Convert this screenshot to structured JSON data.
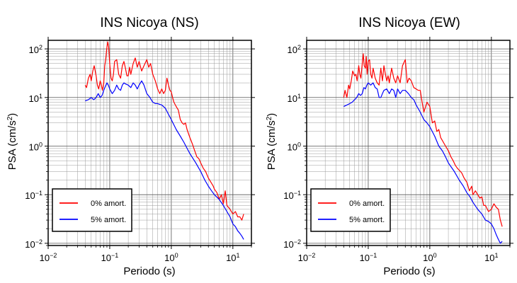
{
  "chart_data": [
    {
      "type": "line",
      "title": "INS Nicoya (NS)",
      "xlabel": "Periodo (s)",
      "ylabel_base": "PSA (cm/s",
      "ylabel_sup": "2",
      "ylabel_end": ")",
      "xscale": "log",
      "yscale": "log",
      "xlim": [
        0.01,
        20
      ],
      "ylim": [
        0.009,
        150
      ],
      "grid": true,
      "legend_position": "bottom-left",
      "x_ticks": [
        {
          "base": "10",
          "exp": "−2"
        },
        {
          "base": "10",
          "exp": "−1"
        },
        {
          "base": "10",
          "exp": "0"
        },
        {
          "base": "10",
          "exp": "1"
        }
      ],
      "y_ticks": [
        {
          "base": "10",
          "exp": "−2"
        },
        {
          "base": "10",
          "exp": "−1"
        },
        {
          "base": "10",
          "exp": "0"
        },
        {
          "base": "10",
          "exp": "1"
        },
        {
          "base": "10",
          "exp": "2"
        }
      ],
      "series": [
        {
          "name": "0% amort.",
          "color": "#ff0000",
          "x": [
            0.04,
            0.042,
            0.045,
            0.048,
            0.05,
            0.053,
            0.056,
            0.06,
            0.063,
            0.066,
            0.07,
            0.073,
            0.076,
            0.08,
            0.083,
            0.086,
            0.09,
            0.093,
            0.096,
            0.1,
            0.105,
            0.11,
            0.115,
            0.12,
            0.13,
            0.14,
            0.15,
            0.16,
            0.17,
            0.18,
            0.19,
            0.2,
            0.21,
            0.22,
            0.24,
            0.26,
            0.28,
            0.3,
            0.33,
            0.36,
            0.4,
            0.43,
            0.46,
            0.5,
            0.55,
            0.6,
            0.65,
            0.7,
            0.75,
            0.8,
            0.85,
            0.9,
            0.95,
            1.0,
            1.05,
            1.1,
            1.2,
            1.3,
            1.4,
            1.5,
            1.6,
            1.7,
            1.8,
            2.0,
            2.2,
            2.4,
            2.6,
            2.8,
            3.0,
            3.3,
            3.6,
            4.0,
            4.4,
            4.8,
            5.0,
            5.5,
            6.0,
            6.5,
            7.0,
            7.5,
            8.0,
            9.0,
            10.0,
            11.0,
            12.0,
            13.0,
            14.0,
            15.0
          ],
          "y": [
            18,
            16,
            25,
            30,
            22,
            35,
            45,
            28,
            18,
            15,
            22,
            18,
            14,
            20,
            45,
            60,
            110,
            140,
            110,
            50,
            25,
            22,
            30,
            55,
            60,
            30,
            25,
            45,
            55,
            40,
            28,
            28,
            42,
            30,
            50,
            65,
            42,
            55,
            35,
            45,
            60,
            42,
            50,
            30,
            22,
            15,
            12,
            15,
            12,
            14,
            25,
            18,
            14,
            13,
            10,
            8,
            6.5,
            5.5,
            3.5,
            3.0,
            2.8,
            3.0,
            2.2,
            1.5,
            1.1,
            0.8,
            0.6,
            0.55,
            0.45,
            0.35,
            0.3,
            0.22,
            0.18,
            0.15,
            0.13,
            0.11,
            0.08,
            0.1,
            0.065,
            0.12,
            0.06,
            0.05,
            0.04,
            0.045,
            0.035,
            0.035,
            0.03,
            0.04
          ]
        },
        {
          "name": "5% amort.",
          "color": "#0000ff",
          "x": [
            0.04,
            0.045,
            0.05,
            0.055,
            0.06,
            0.065,
            0.07,
            0.075,
            0.08,
            0.085,
            0.09,
            0.095,
            0.1,
            0.11,
            0.12,
            0.13,
            0.14,
            0.15,
            0.16,
            0.17,
            0.18,
            0.2,
            0.22,
            0.24,
            0.26,
            0.28,
            0.3,
            0.33,
            0.36,
            0.4,
            0.45,
            0.5,
            0.55,
            0.6,
            0.7,
            0.8,
            0.9,
            1.0,
            1.2,
            1.4,
            1.6,
            1.8,
            2.0,
            2.5,
            3.0,
            3.5,
            4.0,
            4.5,
            5.0,
            6.0,
            7.0,
            8.0,
            9.0,
            10.0,
            11.0,
            12.0,
            13.0,
            14.0,
            15.0
          ],
          "y": [
            8.5,
            9,
            10,
            9,
            10,
            12,
            10,
            11,
            14,
            17,
            20,
            18,
            15,
            12,
            14,
            18,
            15,
            14,
            18,
            20,
            19,
            18,
            16,
            20,
            18,
            15,
            18,
            22,
            18,
            12,
            10,
            8,
            7.5,
            7.5,
            7,
            6,
            4.5,
            3.5,
            2.2,
            1.6,
            1.2,
            0.9,
            0.7,
            0.45,
            0.3,
            0.2,
            0.15,
            0.12,
            0.1,
            0.08,
            0.06,
            0.045,
            0.035,
            0.025,
            0.022,
            0.018,
            0.016,
            0.014,
            0.012
          ]
        }
      ]
    },
    {
      "type": "line",
      "title": "INS Nicoya (EW)",
      "xlabel": "Periodo (s)",
      "ylabel_base": "PSA (cm/s",
      "ylabel_sup": "2",
      "ylabel_end": ")",
      "xscale": "log",
      "yscale": "log",
      "xlim": [
        0.01,
        20
      ],
      "ylim": [
        0.009,
        150
      ],
      "grid": true,
      "legend_position": "bottom-left",
      "x_ticks": [
        {
          "base": "10",
          "exp": "−2"
        },
        {
          "base": "10",
          "exp": "−1"
        },
        {
          "base": "10",
          "exp": "0"
        },
        {
          "base": "10",
          "exp": "1"
        }
      ],
      "y_ticks": [
        {
          "base": "10",
          "exp": "−2"
        },
        {
          "base": "10",
          "exp": "−1"
        },
        {
          "base": "10",
          "exp": "0"
        },
        {
          "base": "10",
          "exp": "1"
        },
        {
          "base": "10",
          "exp": "2"
        }
      ],
      "series": [
        {
          "name": "0% amort.",
          "color": "#ff0000",
          "x": [
            0.04,
            0.042,
            0.045,
            0.048,
            0.05,
            0.053,
            0.056,
            0.06,
            0.063,
            0.066,
            0.07,
            0.073,
            0.076,
            0.08,
            0.083,
            0.086,
            0.09,
            0.093,
            0.096,
            0.1,
            0.105,
            0.11,
            0.115,
            0.12,
            0.13,
            0.14,
            0.15,
            0.16,
            0.17,
            0.18,
            0.19,
            0.2,
            0.21,
            0.22,
            0.24,
            0.26,
            0.28,
            0.3,
            0.33,
            0.36,
            0.4,
            0.43,
            0.46,
            0.5,
            0.55,
            0.6,
            0.65,
            0.7,
            0.75,
            0.8,
            0.9,
            1.0,
            1.1,
            1.2,
            1.3,
            1.4,
            1.5,
            1.6,
            1.8,
            2.0,
            2.2,
            2.4,
            2.6,
            2.8,
            3.0,
            3.3,
            3.6,
            4.0,
            4.4,
            4.8,
            5.0,
            5.5,
            6.0,
            6.5,
            7.0,
            7.5,
            8.0,
            9.0,
            10.0,
            11.0,
            12.0,
            13.0,
            14.0,
            15.0
          ],
          "y": [
            10,
            14,
            10,
            18,
            15,
            22,
            35,
            28,
            30,
            22,
            45,
            30,
            25,
            50,
            80,
            45,
            40,
            70,
            30,
            55,
            60,
            30,
            25,
            40,
            25,
            20,
            18,
            40,
            22,
            45,
            30,
            22,
            28,
            20,
            40,
            25,
            20,
            28,
            20,
            45,
            60,
            20,
            25,
            22,
            16,
            15,
            14,
            14,
            8,
            5,
            8,
            6.5,
            3.0,
            3.3,
            2.0,
            2.2,
            1.5,
            1.3,
            1.0,
            0.8,
            0.6,
            0.5,
            0.4,
            0.35,
            0.32,
            0.28,
            0.22,
            0.18,
            0.12,
            0.15,
            0.1,
            0.12,
            0.1,
            0.085,
            0.09,
            0.06,
            0.06,
            0.045,
            0.05,
            0.065,
            0.055,
            0.05,
            0.03,
            0.022
          ]
        },
        {
          "name": "5% amort.",
          "color": "#0000ff",
          "x": [
            0.04,
            0.045,
            0.05,
            0.055,
            0.06,
            0.065,
            0.07,
            0.075,
            0.08,
            0.085,
            0.09,
            0.095,
            0.1,
            0.11,
            0.12,
            0.13,
            0.14,
            0.15,
            0.16,
            0.17,
            0.18,
            0.2,
            0.22,
            0.24,
            0.26,
            0.28,
            0.3,
            0.33,
            0.36,
            0.4,
            0.45,
            0.5,
            0.55,
            0.6,
            0.7,
            0.8,
            0.9,
            1.0,
            1.2,
            1.4,
            1.6,
            1.8,
            2.0,
            2.5,
            3.0,
            3.5,
            4.0,
            4.5,
            5.0,
            6.0,
            7.0,
            8.0,
            9.0,
            10.0,
            11.0,
            12.0,
            13.0,
            14.0,
            15.0
          ],
          "y": [
            6.5,
            7,
            7.5,
            8,
            9,
            10,
            12,
            11,
            12,
            16,
            15,
            18,
            20,
            18,
            20,
            16,
            15,
            10,
            10,
            12,
            14,
            15,
            12,
            15,
            14,
            10,
            15,
            12,
            14,
            14,
            12,
            10,
            9,
            7,
            5,
            3.5,
            3.0,
            2.5,
            1.6,
            1.0,
            0.8,
            0.6,
            0.45,
            0.3,
            0.2,
            0.15,
            0.11,
            0.09,
            0.07,
            0.05,
            0.04,
            0.03,
            0.028,
            0.025,
            0.02,
            0.015,
            0.012,
            0.01,
            0.011
          ]
        }
      ]
    }
  ]
}
